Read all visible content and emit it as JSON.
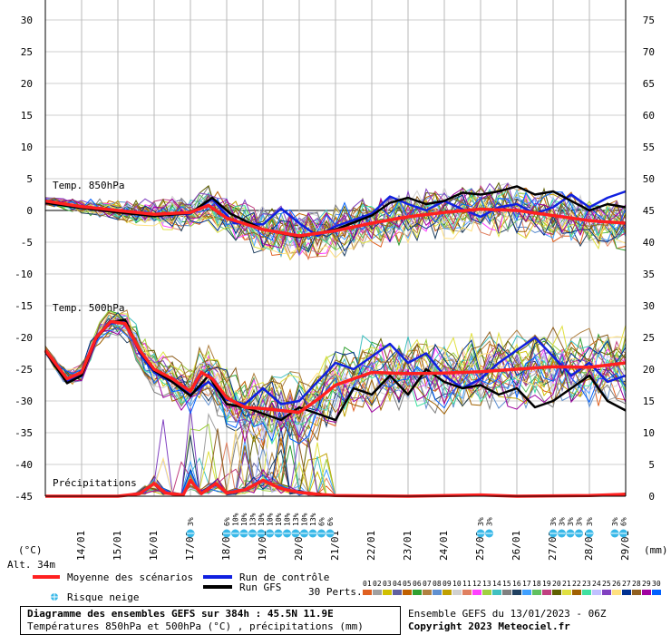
{
  "chart_data": {
    "type": "line",
    "left_axis": {
      "unit": "(°C)",
      "ticks": [
        30,
        25,
        20,
        15,
        10,
        5,
        0,
        -5,
        -10,
        -15,
        -20,
        -25,
        -30,
        -35,
        -40,
        -45
      ],
      "range": [
        -45,
        30
      ]
    },
    "right_axis": {
      "unit": "(mm)",
      "ticks": [
        75,
        70,
        65,
        60,
        55,
        50,
        45,
        40,
        35,
        30,
        25,
        20,
        15,
        10,
        5,
        0
      ],
      "range": [
        0,
        75
      ]
    },
    "x_dates": [
      "14/01",
      "15/01",
      "16/01",
      "17/01",
      "18/01",
      "19/01",
      "20/01",
      "21/01",
      "22/01",
      "23/01",
      "24/01",
      "25/01",
      "26/01",
      "27/01",
      "28/01",
      "29/01"
    ],
    "panel_labels": {
      "t850": "Temp. 850hPa",
      "t500": "Temp. 500hPa",
      "precip": "Précipitations"
    },
    "altitude": "Alt. 34m",
    "grid": true,
    "mean_850": [
      [
        13.0,
        1.5
      ],
      [
        14.0,
        0.6
      ],
      [
        15.0,
        0.0
      ],
      [
        16.0,
        -0.6
      ],
      [
        17.0,
        -0.3
      ],
      [
        17.5,
        0.8
      ],
      [
        18.0,
        -1.2
      ],
      [
        19.0,
        -3.0
      ],
      [
        20.0,
        -4.0
      ],
      [
        21.0,
        -3.2
      ],
      [
        22.0,
        -2.0
      ],
      [
        23.0,
        -1.0
      ],
      [
        24.0,
        -0.3
      ],
      [
        25.0,
        0.2
      ],
      [
        26.0,
        0.0
      ],
      [
        27.0,
        -0.8
      ],
      [
        28.0,
        -1.6
      ],
      [
        29.0,
        -2.0
      ]
    ],
    "control_850": [
      [
        13.0,
        1.4
      ],
      [
        14.0,
        0.5
      ],
      [
        15.0,
        -0.2
      ],
      [
        16.0,
        -0.8
      ],
      [
        17.0,
        -0.5
      ],
      [
        17.6,
        1.8
      ],
      [
        18.2,
        -2.0
      ],
      [
        19.0,
        -2.2
      ],
      [
        19.5,
        0.3
      ],
      [
        20.0,
        -2.0
      ],
      [
        20.5,
        -4.0
      ],
      [
        21.0,
        -2.5
      ],
      [
        22.0,
        -0.5
      ],
      [
        22.5,
        2.2
      ],
      [
        23.0,
        1.0
      ],
      [
        23.5,
        0.0
      ],
      [
        24.0,
        1.5
      ],
      [
        24.5,
        0.2
      ],
      [
        25.0,
        -1.0
      ],
      [
        25.5,
        0.5
      ],
      [
        26.0,
        1.0
      ],
      [
        26.5,
        -0.5
      ],
      [
        27.0,
        0.5
      ],
      [
        27.5,
        2.5
      ],
      [
        28.0,
        0.5
      ],
      [
        28.5,
        2.0
      ],
      [
        29.0,
        3.0
      ]
    ],
    "gfs_850": [
      [
        13.0,
        1.2
      ],
      [
        14.0,
        0.4
      ],
      [
        15.0,
        -0.3
      ],
      [
        16.0,
        -0.9
      ],
      [
        17.0,
        -0.4
      ],
      [
        17.6,
        2.0
      ],
      [
        18.1,
        -0.5
      ],
      [
        19.0,
        -3.0
      ],
      [
        20.0,
        -4.2
      ],
      [
        21.0,
        -3.0
      ],
      [
        22.0,
        -0.8
      ],
      [
        22.5,
        1.2
      ],
      [
        23.0,
        2.0
      ],
      [
        23.5,
        1.0
      ],
      [
        24.0,
        1.5
      ],
      [
        24.5,
        2.8
      ],
      [
        25.0,
        2.5
      ],
      [
        25.5,
        3.0
      ],
      [
        26.0,
        3.8
      ],
      [
        26.5,
        2.5
      ],
      [
        27.0,
        3.0
      ],
      [
        27.5,
        1.5
      ],
      [
        28.0,
        0.0
      ],
      [
        28.5,
        1.0
      ],
      [
        29.0,
        0.5
      ]
    ],
    "mean_500": [
      [
        13.0,
        -22.0
      ],
      [
        13.6,
        -26.5
      ],
      [
        14.0,
        -25.5
      ],
      [
        14.4,
        -20.0
      ],
      [
        14.8,
        -17.5
      ],
      [
        15.2,
        -17.8
      ],
      [
        15.6,
        -22.0
      ],
      [
        16.0,
        -25.0
      ],
      [
        16.5,
        -26.5
      ],
      [
        17.0,
        -28.5
      ],
      [
        17.3,
        -25.5
      ],
      [
        17.6,
        -26.5
      ],
      [
        18.0,
        -29.5
      ],
      [
        18.5,
        -31.0
      ],
      [
        19.0,
        -31.2
      ],
      [
        19.5,
        -31.5
      ],
      [
        20.0,
        -31.8
      ],
      [
        20.5,
        -29.8
      ],
      [
        21.0,
        -27.5
      ],
      [
        21.5,
        -26.5
      ],
      [
        22.0,
        -25.5
      ],
      [
        23.0,
        -25.7
      ],
      [
        24.0,
        -25.6
      ],
      [
        25.0,
        -25.4
      ],
      [
        26.0,
        -25.0
      ],
      [
        27.0,
        -24.6
      ],
      [
        28.0,
        -24.7
      ],
      [
        29.0,
        -24.0
      ]
    ],
    "control_500": [
      [
        13.0,
        -22.0
      ],
      [
        13.6,
        -27.0
      ],
      [
        14.0,
        -25.8
      ],
      [
        14.4,
        -19.8
      ],
      [
        14.8,
        -17.8
      ],
      [
        15.2,
        -17.5
      ],
      [
        15.6,
        -22.5
      ],
      [
        16.0,
        -25.5
      ],
      [
        16.5,
        -27.0
      ],
      [
        17.0,
        -29.0
      ],
      [
        17.5,
        -27.0
      ],
      [
        18.0,
        -29.8
      ],
      [
        18.5,
        -30.5
      ],
      [
        19.0,
        -28.0
      ],
      [
        19.5,
        -30.5
      ],
      [
        20.0,
        -30.0
      ],
      [
        20.5,
        -27.0
      ],
      [
        21.0,
        -24.0
      ],
      [
        21.5,
        -25.0
      ],
      [
        22.0,
        -23.0
      ],
      [
        22.5,
        -21.0
      ],
      [
        23.0,
        -24.0
      ],
      [
        23.5,
        -22.5
      ],
      [
        24.0,
        -26.0
      ],
      [
        24.5,
        -28.0
      ],
      [
        25.0,
        -26.5
      ],
      [
        25.5,
        -24.0
      ],
      [
        26.0,
        -22.0
      ],
      [
        26.5,
        -20.0
      ],
      [
        27.0,
        -23.0
      ],
      [
        27.5,
        -26.0
      ],
      [
        28.0,
        -24.0
      ],
      [
        28.5,
        -27.0
      ],
      [
        29.0,
        -26.0
      ]
    ],
    "gfs_500": [
      [
        13.0,
        -22.2
      ],
      [
        13.6,
        -27.2
      ],
      [
        14.0,
        -26.0
      ],
      [
        14.4,
        -20.2
      ],
      [
        14.8,
        -17.6
      ],
      [
        15.2,
        -17.2
      ],
      [
        15.6,
        -22.2
      ],
      [
        16.0,
        -25.2
      ],
      [
        16.5,
        -27.0
      ],
      [
        17.0,
        -29.2
      ],
      [
        17.5,
        -26.0
      ],
      [
        18.0,
        -30.5
      ],
      [
        18.5,
        -31.0
      ],
      [
        19.0,
        -32.0
      ],
      [
        19.5,
        -33.0
      ],
      [
        20.0,
        -31.0
      ],
      [
        20.5,
        -32.0
      ],
      [
        21.0,
        -33.0
      ],
      [
        21.5,
        -28.0
      ],
      [
        22.0,
        -29.0
      ],
      [
        22.5,
        -26.0
      ],
      [
        23.0,
        -29.0
      ],
      [
        23.5,
        -25.0
      ],
      [
        24.0,
        -27.0
      ],
      [
        24.5,
        -28.0
      ],
      [
        25.0,
        -27.5
      ],
      [
        25.5,
        -29.0
      ],
      [
        26.0,
        -28.0
      ],
      [
        26.5,
        -31.0
      ],
      [
        27.0,
        -30.0
      ],
      [
        27.5,
        -28.0
      ],
      [
        28.0,
        -26.0
      ],
      [
        28.5,
        -30.0
      ],
      [
        29.0,
        -31.5
      ]
    ],
    "mean_precip": [
      [
        13.0,
        0.0
      ],
      [
        15.0,
        0.0
      ],
      [
        15.6,
        0.4
      ],
      [
        16.0,
        2.0
      ],
      [
        16.3,
        0.5
      ],
      [
        16.8,
        0.2
      ],
      [
        17.0,
        2.5
      ],
      [
        17.3,
        0.4
      ],
      [
        17.7,
        2.0
      ],
      [
        18.0,
        0.5
      ],
      [
        18.5,
        1.0
      ],
      [
        19.0,
        2.5
      ],
      [
        19.5,
        1.2
      ],
      [
        20.0,
        0.6
      ],
      [
        20.5,
        0.3
      ],
      [
        21.0,
        0.1
      ],
      [
        23.0,
        0.0
      ],
      [
        25.0,
        0.2
      ],
      [
        26.0,
        0.0
      ],
      [
        28.0,
        0.1
      ],
      [
        29.0,
        0.3
      ]
    ],
    "snow_risk": [
      {
        "date": 17.0,
        "labels": [
          "3%"
        ]
      },
      {
        "date": 18.0,
        "labels": [
          "6%",
          "10%",
          "10%",
          "13%",
          "10%",
          "10%",
          "10%",
          "10%",
          "13%",
          "10%",
          "13%",
          "6%",
          "6%"
        ]
      },
      {
        "date": 25.0,
        "labels": [
          "3%",
          "3%"
        ]
      },
      {
        "date": 27.0,
        "labels": [
          "3%",
          "3%",
          "3%",
          "3%"
        ]
      },
      {
        "date": 28.0,
        "labels": [
          "3%"
        ]
      },
      {
        "date": 28.7,
        "labels": [
          "3%",
          "6%"
        ]
      }
    ]
  },
  "legend": {
    "mean": "Moyenne des scénarios",
    "control": "Run de contrôle",
    "gfs": "Run GFS",
    "snow": "Risque neige",
    "perts": "30 Perts.",
    "pert_numbers": [
      "01",
      "02",
      "03",
      "04",
      "05",
      "06",
      "07",
      "08",
      "09",
      "10",
      "11",
      "12",
      "13",
      "14",
      "15",
      "16",
      "17",
      "18",
      "19",
      "20",
      "21",
      "22",
      "23",
      "24",
      "25",
      "26",
      "27",
      "28",
      "29",
      "30"
    ],
    "pert_colors": [
      "#e06020",
      "#a0a0a0",
      "#d0c000",
      "#6060a0",
      "#c06000",
      "#30a030",
      "#b08040",
      "#6090d0",
      "#c0a000",
      "#d0d0d0",
      "#e08060",
      "#ff40ff",
      "#a0d040",
      "#40c0c0",
      "#808080",
      "#204060",
      "#40a0ff",
      "#60c060",
      "#c04080",
      "#606000",
      "#e0e040",
      "#a06000",
      "#40e0a0",
      "#c0c0ff",
      "#8040c0",
      "#ffe080",
      "#003090",
      "#906020",
      "#a000a0",
      "#0060ff"
    ]
  },
  "footer": {
    "title": "Diagramme des ensembles GEFS sur 384h : 45.5N 11.9E",
    "subtitle": "Températures 850hPa et 500hPa (°C) , précipitations (mm)",
    "run": "Ensemble GEFS du 13/01/2023 - 06Z",
    "copyright": "Copyright 2023 Meteociel.fr"
  },
  "colors": {
    "mean": "#ff2020",
    "control": "#1020e0",
    "gfs": "#000000",
    "grid": "#c8c8c8",
    "snow": "#38b8e8"
  }
}
